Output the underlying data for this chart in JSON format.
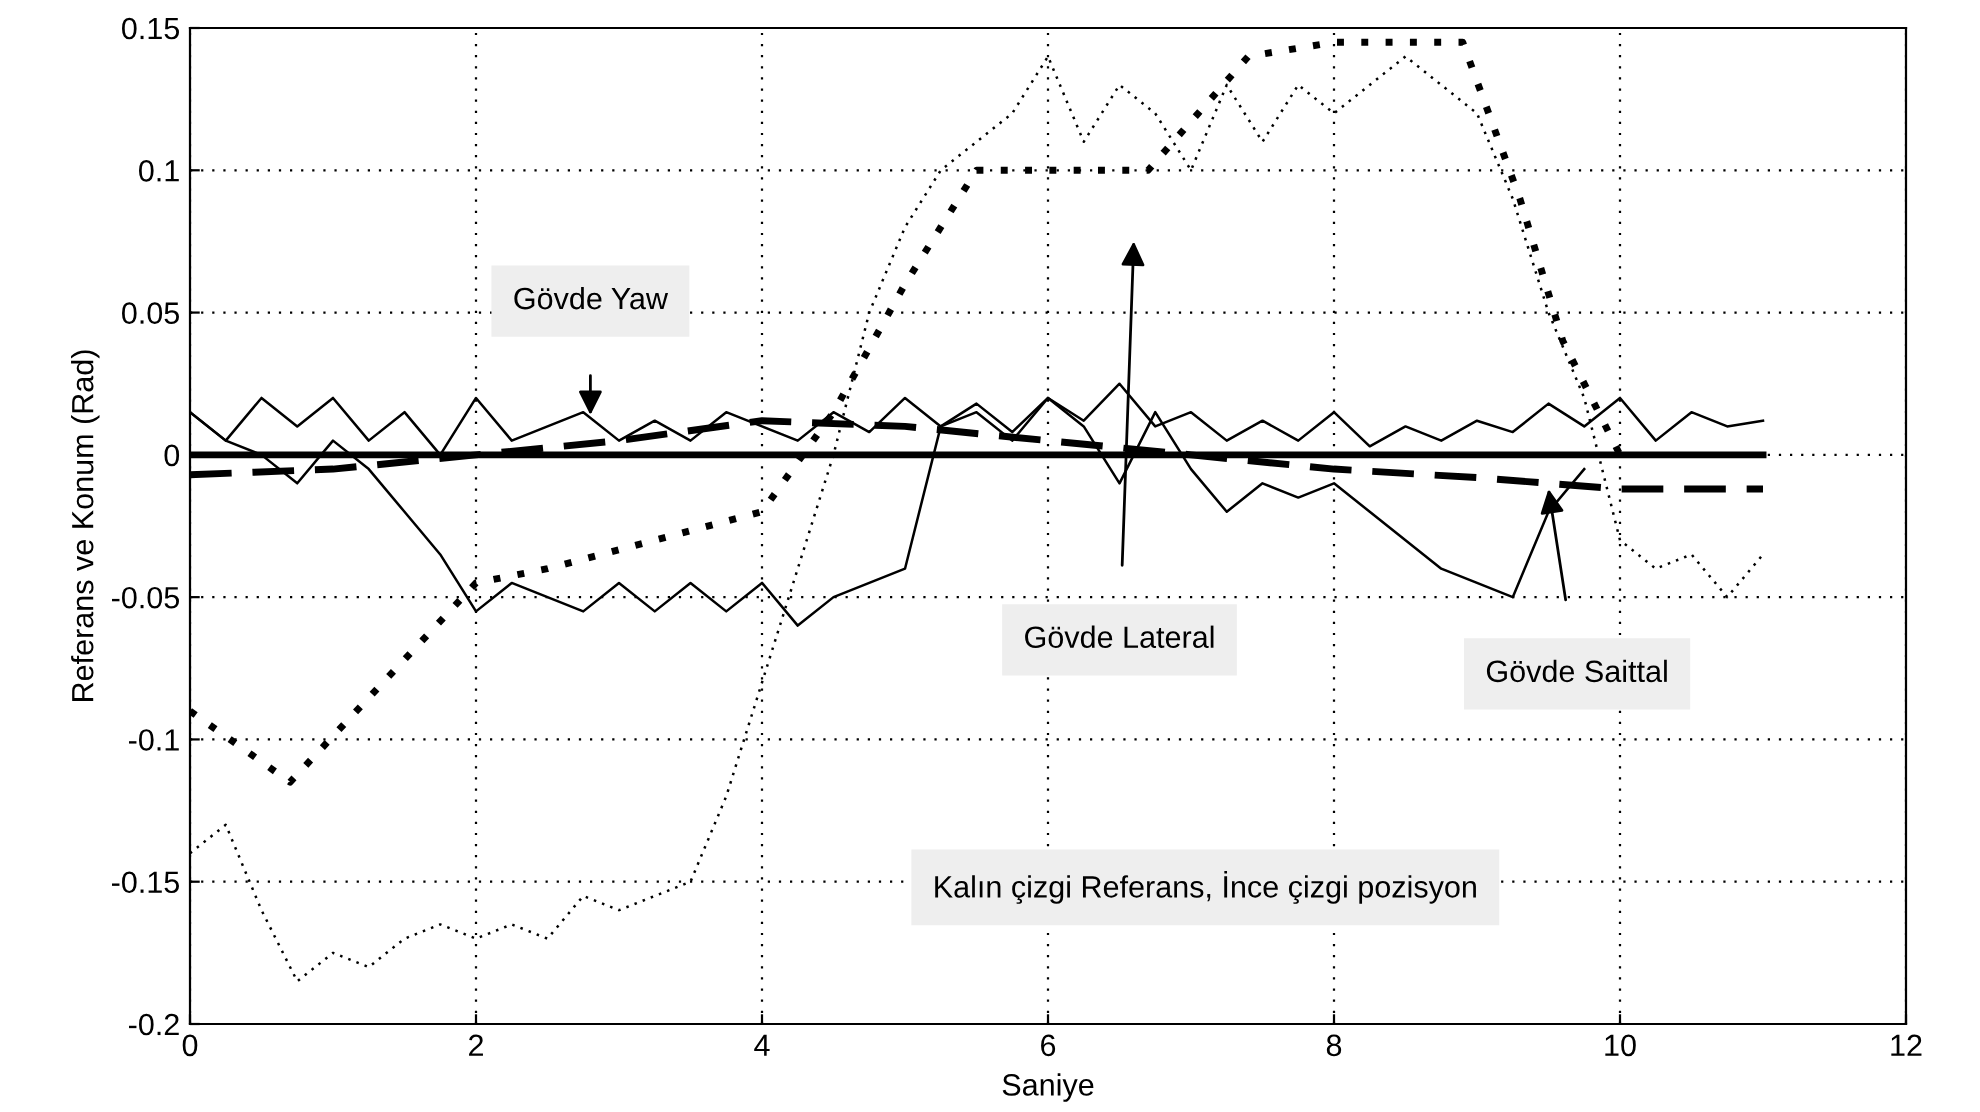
{
  "chart_data": {
    "type": "line",
    "xlabel": "Saniye",
    "ylabel": "Referans ve Konum (Rad)",
    "xlim": [
      0,
      12
    ],
    "ylim": [
      -0.2,
      0.15
    ],
    "xticks": [
      0,
      2,
      4,
      6,
      8,
      10,
      12
    ],
    "yticks": [
      -0.2,
      -0.15,
      -0.1,
      -0.05,
      0,
      0.05,
      0.1,
      0.15
    ],
    "grid": true,
    "marker": "none",
    "series": [
      {
        "color": "#000000",
        "line_style": "solid",
        "x": [
          0,
          11
        ],
        "values": [
          0,
          0
        ]
      },
      {
        "color": "#000000",
        "line_style": "dashed",
        "x": [
          0,
          1,
          2,
          3,
          4,
          5,
          6,
          7,
          8,
          9,
          10,
          11
        ],
        "values": [
          -0.007,
          -0.005,
          0.0,
          0.005,
          0.012,
          0.01,
          0.005,
          0.0,
          -0.005,
          -0.008,
          -0.012,
          -0.012
        ]
      },
      {
        "color": "#000000",
        "line_style": "dotted",
        "x": [
          0,
          0.7,
          2,
          2.5,
          4,
          4.5,
          5,
          5.5,
          6.7,
          7.4,
          8,
          8.9,
          9.3,
          9.6,
          10
        ],
        "values": [
          -0.09,
          -0.115,
          -0.045,
          -0.04,
          -0.02,
          0.015,
          0.06,
          0.1,
          0.1,
          0.14,
          0.145,
          0.145,
          0.09,
          0.04,
          0.0
        ]
      },
      {
        "color": "#000000",
        "line_style": "solid",
        "x": [
          0,
          0.25,
          0.5,
          0.75,
          1,
          1.25,
          1.5,
          1.75,
          2,
          2.25,
          2.5,
          2.75,
          3,
          3.25,
          3.5,
          3.75,
          4,
          4.25,
          4.5,
          4.75,
          5,
          5.25,
          5.5,
          5.75,
          6,
          6.25,
          6.5,
          6.75,
          7,
          7.25,
          7.5,
          7.75,
          8,
          8.25,
          8.5,
          8.75,
          9,
          9.25,
          9.5,
          9.75,
          10,
          10.25,
          10.5,
          10.75,
          11
        ],
        "values": [
          0.015,
          0.005,
          0.02,
          0.01,
          0.02,
          0.005,
          0.015,
          0.0,
          0.02,
          0.005,
          0.01,
          0.015,
          0.005,
          0.012,
          0.005,
          0.015,
          0.01,
          0.005,
          0.015,
          0.008,
          0.02,
          0.01,
          0.018,
          0.008,
          0.02,
          0.012,
          0.025,
          0.01,
          0.015,
          0.005,
          0.012,
          0.005,
          0.015,
          0.003,
          0.01,
          0.005,
          0.012,
          0.008,
          0.018,
          0.01,
          0.02,
          0.005,
          0.015,
          0.01,
          0.012
        ]
      },
      {
        "color": "#000000",
        "line_style": "solid",
        "x": [
          0,
          0.25,
          0.5,
          0.75,
          1,
          1.25,
          1.5,
          1.75,
          2,
          2.25,
          2.5,
          2.75,
          3,
          3.25,
          3.5,
          3.75,
          4,
          4.25,
          4.5,
          4.75,
          5,
          5.25,
          5.5,
          5.75,
          6,
          6.25,
          6.5,
          6.75,
          7,
          7.25,
          7.5,
          7.75,
          8,
          8.25,
          8.5,
          8.75,
          9,
          9.25,
          9.5,
          9.75
        ],
        "values": [
          0.015,
          0.005,
          0.0,
          -0.01,
          0.005,
          -0.005,
          -0.02,
          -0.035,
          -0.055,
          -0.045,
          -0.05,
          -0.055,
          -0.045,
          -0.055,
          -0.045,
          -0.055,
          -0.045,
          -0.06,
          -0.05,
          -0.045,
          -0.04,
          0.01,
          0.015,
          0.005,
          0.02,
          0.01,
          -0.01,
          0.015,
          -0.005,
          -0.02,
          -0.01,
          -0.015,
          -0.01,
          -0.02,
          -0.03,
          -0.04,
          -0.045,
          -0.05,
          -0.02,
          -0.005
        ]
      },
      {
        "color": "#000000",
        "line_style": "dotted",
        "x": [
          0,
          0.25,
          0.5,
          0.75,
          1,
          1.25,
          1.5,
          1.75,
          2,
          2.25,
          2.5,
          2.75,
          3,
          3.25,
          3.5,
          3.75,
          4,
          4.25,
          4.5,
          4.75,
          5,
          5.25,
          5.5,
          5.75,
          6,
          6.25,
          6.5,
          6.75,
          7,
          7.25,
          7.5,
          7.75,
          8,
          8.25,
          8.5,
          8.75,
          9,
          9.25,
          9.5,
          9.75,
          10,
          10.25,
          10.5,
          10.75,
          11
        ],
        "values": [
          -0.14,
          -0.13,
          -0.16,
          -0.185,
          -0.175,
          -0.18,
          -0.17,
          -0.165,
          -0.17,
          -0.165,
          -0.17,
          -0.155,
          -0.16,
          -0.155,
          -0.15,
          -0.12,
          -0.08,
          -0.04,
          0.0,
          0.05,
          0.08,
          0.1,
          0.11,
          0.12,
          0.14,
          0.11,
          0.13,
          0.12,
          0.1,
          0.13,
          0.11,
          0.13,
          0.12,
          0.13,
          0.14,
          0.13,
          0.12,
          0.09,
          0.05,
          0.02,
          -0.03,
          -0.04,
          -0.035,
          -0.05,
          -0.035
        ]
      }
    ],
    "annotations": [
      "Gövde Yaw",
      "Gövde Lateral",
      "Gövde Saittal",
      "Kalın çizgi Referans, İnce çizgi pozisyon"
    ]
  }
}
